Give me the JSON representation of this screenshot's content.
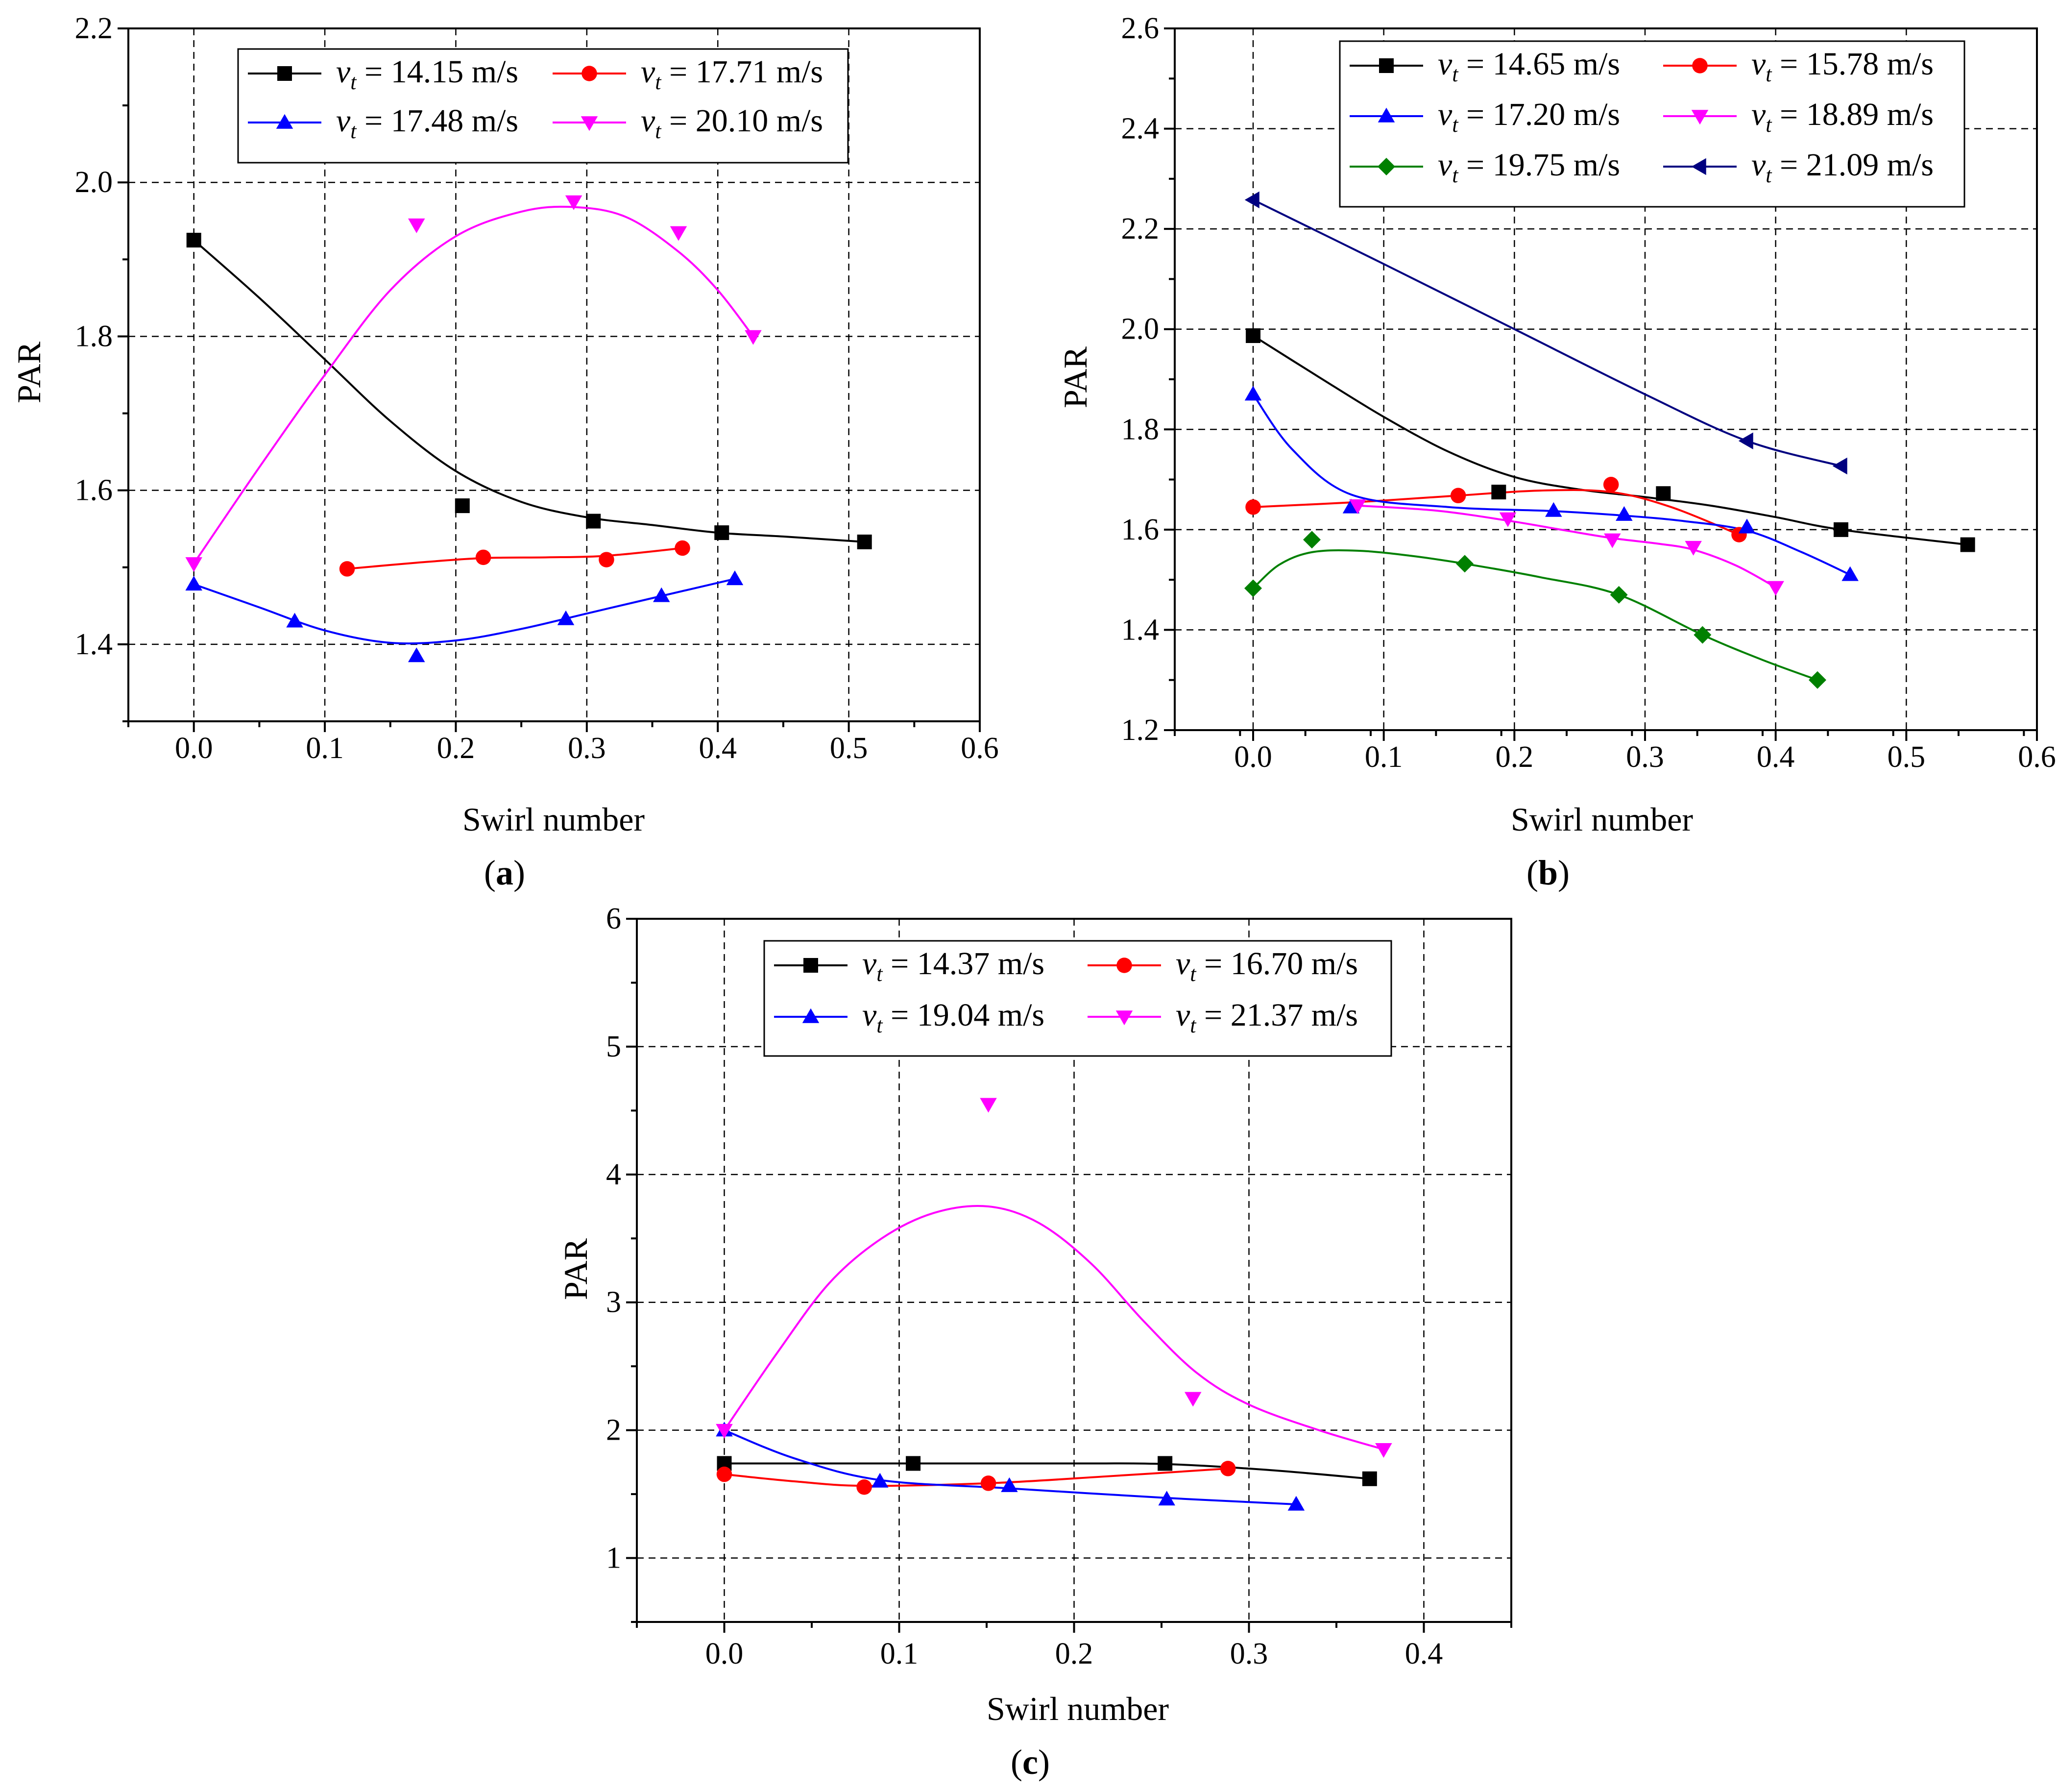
{
  "figure": {
    "panels": [
      {
        "id": "a",
        "label": "(a)",
        "label_letter": "a"
      },
      {
        "id": "b",
        "label": "(b)",
        "label_letter": "b"
      },
      {
        "id": "c",
        "label": "(c)",
        "label_letter": "c"
      }
    ]
  },
  "chart_data": [
    {
      "type": "line",
      "panel": "a",
      "title": "",
      "xlabel": "Swirl number",
      "ylabel": "PAR",
      "xlim": [
        -0.05,
        0.6
      ],
      "ylim": [
        1.3,
        2.2
      ],
      "grid": true,
      "legend_position": "top",
      "x_ticks": [
        0.0,
        0.1,
        0.2,
        0.3,
        0.4,
        0.5,
        0.6
      ],
      "x_tick_labels": [
        "0.0",
        "0.1",
        "0.2",
        "0.3",
        "0.4",
        "0.5",
        "0.6"
      ],
      "y_ticks": [
        1.4,
        1.6,
        1.8,
        2.0,
        2.2
      ],
      "y_tick_labels": [
        "1.4",
        "1.6",
        "1.8",
        "2.0",
        "2.2"
      ],
      "series": [
        {
          "name": "v_t = 14.15 m/s",
          "legend_value": "= 14.15 m/s",
          "color": "#000000",
          "marker": "square",
          "x": [
            0.0,
            0.205,
            0.305,
            0.403,
            0.512
          ],
          "y": [
            1.925,
            1.58,
            1.56,
            1.545,
            1.533
          ],
          "curve_x": [
            0.0,
            0.05,
            0.1,
            0.15,
            0.2,
            0.25,
            0.3,
            0.35,
            0.4,
            0.45,
            0.512
          ],
          "curve_y": [
            1.925,
            1.85,
            1.77,
            1.69,
            1.625,
            1.585,
            1.565,
            1.555,
            1.545,
            1.54,
            1.533
          ]
        },
        {
          "name": "v_t = 17.71 m/s",
          "legend_value": "= 17.71 m/s",
          "color": "#ff0000",
          "marker": "circle",
          "x": [
            0.117,
            0.221,
            0.315,
            0.373
          ],
          "y": [
            1.498,
            1.513,
            1.51,
            1.525
          ],
          "curve_x": [
            0.117,
            0.17,
            0.221,
            0.27,
            0.315,
            0.373
          ],
          "curve_y": [
            1.498,
            1.506,
            1.512,
            1.513,
            1.515,
            1.525
          ]
        },
        {
          "name": "v_t = 17.48 m/s",
          "legend_value": "= 17.48 m/s",
          "color": "#0000ff",
          "marker": "triangle-up",
          "x": [
            0.0,
            0.077,
            0.17,
            0.284,
            0.357,
            0.413
          ],
          "y": [
            1.478,
            1.43,
            1.385,
            1.433,
            1.463,
            1.485
          ],
          "curve_x": [
            0.0,
            0.05,
            0.1,
            0.15,
            0.2,
            0.25,
            0.3,
            0.35,
            0.413
          ],
          "curve_y": [
            1.478,
            1.448,
            1.418,
            1.402,
            1.405,
            1.42,
            1.44,
            1.46,
            1.485
          ]
        },
        {
          "name": "v_t = 20.10 m/s",
          "legend_value": "= 20.10 m/s",
          "color": "#ff00ff",
          "marker": "triangle-down",
          "x": [
            0.0,
            0.17,
            0.29,
            0.37,
            0.427
          ],
          "y": [
            1.505,
            1.945,
            1.975,
            1.935,
            1.8
          ],
          "curve_x": [
            0.0,
            0.05,
            0.1,
            0.15,
            0.2,
            0.25,
            0.29,
            0.33,
            0.37,
            0.4,
            0.427
          ],
          "curve_y": [
            1.505,
            1.63,
            1.75,
            1.86,
            1.93,
            1.962,
            1.968,
            1.955,
            1.91,
            1.86,
            1.8
          ]
        }
      ]
    },
    {
      "type": "line",
      "panel": "b",
      "title": "",
      "xlabel": "Swirl number",
      "ylabel": "PAR",
      "xlim": [
        -0.06,
        0.6
      ],
      "ylim": [
        1.2,
        2.6
      ],
      "grid": true,
      "legend_position": "top",
      "x_ticks": [
        0.0,
        0.1,
        0.2,
        0.3,
        0.4,
        0.5,
        0.6
      ],
      "x_tick_labels": [
        "0.0",
        "0.1",
        "0.2",
        "0.3",
        "0.4",
        "0.5",
        "0.6"
      ],
      "y_ticks": [
        1.2,
        1.4,
        1.6,
        1.8,
        2.0,
        2.2,
        2.4,
        2.6
      ],
      "y_tick_labels": [
        "1.2",
        "1.4",
        "1.6",
        "1.8",
        "2.0",
        "2.2",
        "2.4",
        "2.6"
      ],
      "series": [
        {
          "name": "v_t = 14.65 m/s",
          "legend_value": "= 14.65 m/s",
          "color": "#000000",
          "marker": "square",
          "x": [
            0.0,
            0.188,
            0.314,
            0.45,
            0.547
          ],
          "y": [
            1.987,
            1.675,
            1.672,
            1.6,
            1.57
          ],
          "curve_x": [
            0.0,
            0.05,
            0.1,
            0.15,
            0.2,
            0.25,
            0.3,
            0.35,
            0.4,
            0.45,
            0.547
          ],
          "curve_y": [
            1.987,
            1.905,
            1.825,
            1.755,
            1.705,
            1.68,
            1.665,
            1.648,
            1.625,
            1.6,
            1.57
          ]
        },
        {
          "name": "v_t = 15.78 m/s",
          "legend_value": "= 15.78 m/s",
          "color": "#ff0000",
          "marker": "circle",
          "x": [
            0.0,
            0.157,
            0.274,
            0.372
          ],
          "y": [
            1.645,
            1.668,
            1.69,
            1.59
          ],
          "curve_x": [
            0.0,
            0.08,
            0.157,
            0.22,
            0.274,
            0.32,
            0.372
          ],
          "curve_y": [
            1.645,
            1.655,
            1.668,
            1.678,
            1.675,
            1.645,
            1.59
          ]
        },
        {
          "name": "v_t = 17.20 m/s",
          "legend_value": "= 17.20 m/s",
          "color": "#0000ff",
          "marker": "triangle-up",
          "x": [
            0.0,
            0.075,
            0.23,
            0.284,
            0.378,
            0.457
          ],
          "y": [
            1.87,
            1.645,
            1.638,
            1.63,
            1.605,
            1.51
          ],
          "curve_x": [
            0.0,
            0.03,
            0.075,
            0.15,
            0.23,
            0.284,
            0.33,
            0.378,
            0.42,
            0.457
          ],
          "curve_y": [
            1.87,
            1.76,
            1.67,
            1.645,
            1.637,
            1.628,
            1.617,
            1.598,
            1.555,
            1.51
          ]
        },
        {
          "name": "v_t = 18.89 m/s",
          "legend_value": "= 18.89 m/s",
          "color": "#ff00ff",
          "marker": "triangle-down",
          "x": [
            0.08,
            0.195,
            0.275,
            0.337,
            0.4
          ],
          "y": [
            1.648,
            1.622,
            1.58,
            1.565,
            1.485
          ],
          "curve_x": [
            0.08,
            0.14,
            0.195,
            0.24,
            0.275,
            0.31,
            0.337,
            0.37,
            0.4
          ],
          "curve_y": [
            1.648,
            1.638,
            1.618,
            1.598,
            1.583,
            1.572,
            1.56,
            1.528,
            1.485
          ]
        },
        {
          "name": "v_t = 19.75 m/s",
          "legend_value": "= 19.75 m/s",
          "color": "#008000",
          "marker": "diamond",
          "x": [
            0.0,
            0.045,
            0.162,
            0.28,
            0.344,
            0.432
          ],
          "y": [
            1.483,
            1.58,
            1.532,
            1.47,
            1.39,
            1.3
          ],
          "curve_x": [
            0.0,
            0.02,
            0.045,
            0.08,
            0.12,
            0.162,
            0.22,
            0.28,
            0.344,
            0.39,
            0.432
          ],
          "curve_y": [
            1.483,
            1.53,
            1.555,
            1.558,
            1.548,
            1.532,
            1.505,
            1.47,
            1.39,
            1.34,
            1.3
          ]
        },
        {
          "name": "v_t = 21.09 m/s",
          "legend_value": "= 21.09 m/s",
          "color": "#000080",
          "marker": "triangle-left",
          "x": [
            0.0,
            0.378,
            0.45
          ],
          "y": [
            2.258,
            1.777,
            1.727
          ],
          "curve_x": [
            0.0,
            0.1,
            0.2,
            0.3,
            0.378,
            0.45
          ],
          "curve_y": [
            2.258,
            2.13,
            2.0,
            1.87,
            1.777,
            1.727
          ]
        }
      ]
    },
    {
      "type": "line",
      "panel": "c",
      "title": "",
      "xlabel": "Swirl number",
      "ylabel": "PAR",
      "xlim": [
        -0.05,
        0.45
      ],
      "ylim": [
        0.5,
        6.0
      ],
      "grid": true,
      "legend_position": "top",
      "x_ticks": [
        0.0,
        0.1,
        0.2,
        0.3,
        0.4
      ],
      "x_tick_labels": [
        "0.0",
        "0.1",
        "0.2",
        "0.3",
        "0.4"
      ],
      "y_ticks": [
        1,
        2,
        3,
        4,
        5,
        6
      ],
      "y_tick_labels": [
        "1",
        "2",
        "3",
        "4",
        "5",
        "6"
      ],
      "series": [
        {
          "name": "v_t = 14.37 m/s",
          "legend_value": "= 14.37 m/s",
          "color": "#000000",
          "marker": "square",
          "x": [
            0.0,
            0.108,
            0.252,
            0.369
          ],
          "y": [
            1.74,
            1.74,
            1.74,
            1.62
          ],
          "curve_x": [
            0.0,
            0.108,
            0.2,
            0.252,
            0.31,
            0.369
          ],
          "curve_y": [
            1.74,
            1.74,
            1.74,
            1.735,
            1.69,
            1.62
          ]
        },
        {
          "name": "v_t = 16.70 m/s",
          "legend_value": "= 16.70 m/s",
          "color": "#ff0000",
          "marker": "circle",
          "x": [
            0.0,
            0.08,
            0.151,
            0.288
          ],
          "y": [
            1.655,
            1.555,
            1.585,
            1.7
          ],
          "curve_x": [
            0.0,
            0.04,
            0.08,
            0.151,
            0.22,
            0.288
          ],
          "curve_y": [
            1.655,
            1.6,
            1.565,
            1.585,
            1.64,
            1.7
          ]
        },
        {
          "name": "v_t = 19.04 m/s",
          "legend_value": "= 19.04 m/s",
          "color": "#0000ff",
          "marker": "triangle-up",
          "x": [
            0.0,
            0.089,
            0.163,
            0.253,
            0.327
          ],
          "y": [
            2.0,
            1.6,
            1.565,
            1.46,
            1.42
          ],
          "curve_x": [
            0.0,
            0.04,
            0.089,
            0.163,
            0.253,
            0.327
          ],
          "curve_y": [
            2.0,
            1.78,
            1.61,
            1.545,
            1.47,
            1.42
          ]
        },
        {
          "name": "v_t = 21.37 m/s",
          "legend_value": "= 21.37 m/s",
          "color": "#ff00ff",
          "marker": "triangle-down",
          "x": [
            0.0,
            0.151,
            0.268,
            0.377
          ],
          "y": [
            2.0,
            4.55,
            2.25,
            1.85
          ],
          "curve_x": [
            0.0,
            0.03,
            0.06,
            0.09,
            0.12,
            0.151,
            0.18,
            0.21,
            0.24,
            0.27,
            0.3,
            0.34,
            0.377
          ],
          "curve_y": [
            2.0,
            2.6,
            3.15,
            3.5,
            3.7,
            3.75,
            3.62,
            3.3,
            2.85,
            2.45,
            2.2,
            2.0,
            1.85
          ]
        }
      ]
    }
  ]
}
